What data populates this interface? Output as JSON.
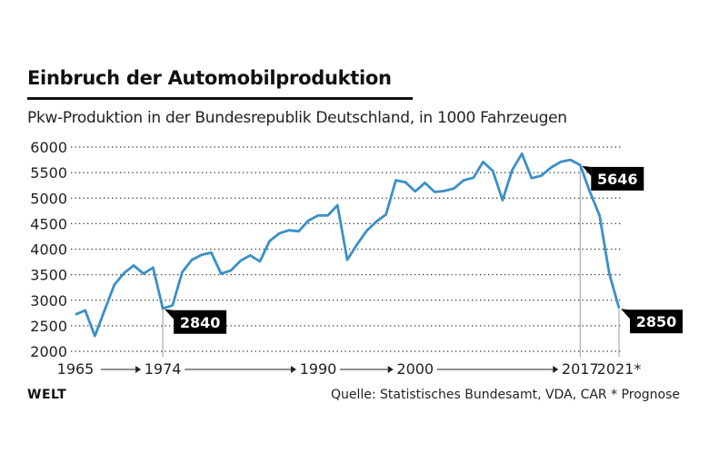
{
  "title": "Einbruch der Automobilproduktion",
  "subtitle": "Pkw-Produktion in der Bundesrepublik Deutschland, in 1000 Fahrzeugen",
  "logo": "WELT",
  "source": "Quelle: Statistisches Bundesamt, VDA, CAR * Prognose",
  "colors": {
    "line": "#3a8fc8",
    "label_bg": "#000000"
  },
  "chart_data": {
    "type": "line",
    "title": "Einbruch der Automobilproduktion",
    "ylabel": "in 1000 Fahrzeugen",
    "ylim": [
      2000,
      6000
    ],
    "yticks": [
      2000,
      2500,
      3000,
      3500,
      4000,
      4500,
      5000,
      5500,
      6000
    ],
    "xlim": [
      1965,
      2021
    ],
    "xtick_labels": [
      {
        "year": 1965,
        "label": "1965"
      },
      {
        "year": 1974,
        "label": "1974"
      },
      {
        "year": 1990,
        "label": "1990"
      },
      {
        "year": 2000,
        "label": "2000"
      },
      {
        "year": 2017,
        "label": "2017"
      },
      {
        "year": 2021,
        "label": "2021*"
      }
    ],
    "grid": true,
    "annotations": [
      {
        "year": 1974,
        "label": "2840"
      },
      {
        "year": 2017,
        "label": "5646"
      },
      {
        "year": 2021,
        "label": "2850"
      }
    ],
    "x": [
      1965,
      1966,
      1967,
      1968,
      1969,
      1970,
      1971,
      1972,
      1973,
      1974,
      1975,
      1976,
      1977,
      1978,
      1979,
      1980,
      1981,
      1982,
      1983,
      1984,
      1985,
      1986,
      1987,
      1988,
      1989,
      1990,
      1991,
      1992,
      1993,
      1994,
      1995,
      1996,
      1997,
      1998,
      1999,
      2000,
      2001,
      2002,
      2003,
      2004,
      2005,
      2006,
      2007,
      2008,
      2009,
      2010,
      2011,
      2012,
      2013,
      2014,
      2015,
      2016,
      2017,
      2018,
      2019,
      2020,
      2021
    ],
    "values": [
      2720,
      2800,
      2300,
      2800,
      3300,
      3530,
      3680,
      3520,
      3640,
      2840,
      2900,
      3550,
      3790,
      3890,
      3930,
      3520,
      3580,
      3770,
      3880,
      3760,
      4160,
      4310,
      4370,
      4350,
      4560,
      4660,
      4660,
      4860,
      3790,
      4090,
      4360,
      4540,
      4680,
      5350,
      5310,
      5130,
      5300,
      5120,
      5140,
      5190,
      5350,
      5400,
      5710,
      5530,
      4960,
      5550,
      5870,
      5390,
      5440,
      5600,
      5710,
      5750,
      5646,
      5120,
      4660,
      3520,
      2850
    ]
  }
}
